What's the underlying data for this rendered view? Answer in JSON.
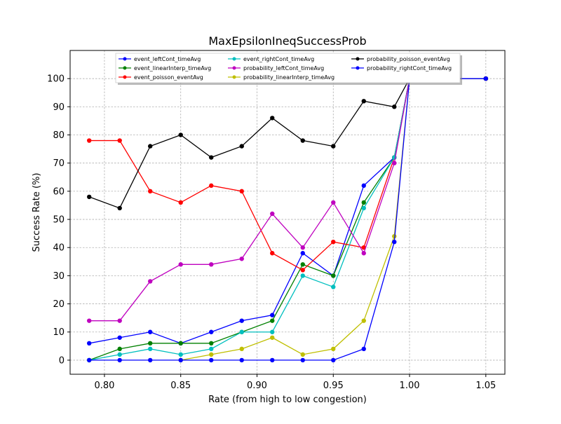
{
  "chart_data": {
    "type": "line",
    "title": "MaxEpsilonIneqSuccessProb",
    "xlabel": "Rate (from high to low congestion)",
    "ylabel": "Success Rate (%)",
    "xlim": [
      0.7775,
      1.0625
    ],
    "ylim": [
      -5,
      110
    ],
    "xticks": [
      0.8,
      0.85,
      0.9,
      0.95,
      1.0,
      1.05
    ],
    "xtick_labels": [
      "0.80",
      "0.85",
      "0.90",
      "0.95",
      "1.00",
      "1.05"
    ],
    "yticks": [
      0,
      10,
      20,
      30,
      40,
      50,
      60,
      70,
      80,
      90,
      100
    ],
    "ytick_labels": [
      "0",
      "10",
      "20",
      "30",
      "40",
      "50",
      "60",
      "70",
      "80",
      "90",
      "100"
    ],
    "grid": true,
    "legend_position": "top",
    "series": [
      {
        "name": "event_leftCont_timeAvg",
        "color": "#0000ff",
        "x": [
          0.79,
          0.81,
          0.83,
          0.85,
          0.87,
          0.89,
          0.91,
          0.93,
          0.95,
          0.97,
          0.99,
          1.0,
          1.05
        ],
        "y": [
          6,
          8,
          10,
          6,
          10,
          14,
          16,
          38,
          30,
          62,
          72,
          100,
          100
        ]
      },
      {
        "name": "event_linearInterp_timeAvg",
        "color": "#008000",
        "x": [
          0.79,
          0.81,
          0.83,
          0.85,
          0.87,
          0.89,
          0.91,
          0.93,
          0.95,
          0.97,
          0.99,
          1.0,
          1.05
        ],
        "y": [
          0,
          4,
          6,
          6,
          6,
          10,
          14,
          34,
          30,
          56,
          72,
          100,
          100
        ]
      },
      {
        "name": "event_poisson_eventAvg",
        "color": "#ff0000",
        "x": [
          0.79,
          0.81,
          0.83,
          0.85,
          0.87,
          0.89,
          0.91,
          0.93,
          0.95,
          0.97,
          0.99,
          1.0,
          1.05
        ],
        "y": [
          78,
          78,
          60,
          56,
          62,
          60,
          38,
          32,
          42,
          40,
          72,
          100,
          100
        ]
      },
      {
        "name": "event_rightCont_timeAvg",
        "color": "#00bfbf",
        "x": [
          0.79,
          0.81,
          0.83,
          0.85,
          0.87,
          0.89,
          0.91,
          0.93,
          0.95,
          0.97,
          0.99,
          1.0,
          1.05
        ],
        "y": [
          0,
          2,
          4,
          2,
          4,
          10,
          10,
          30,
          26,
          54,
          72,
          100,
          100
        ]
      },
      {
        "name": "probability_leftCont_timeAvg",
        "color": "#bf00bf",
        "x": [
          0.79,
          0.81,
          0.83,
          0.85,
          0.87,
          0.89,
          0.91,
          0.93,
          0.95,
          0.97,
          0.99,
          1.0,
          1.05
        ],
        "y": [
          14,
          14,
          28,
          34,
          34,
          36,
          52,
          40,
          56,
          38,
          70,
          100,
          100
        ]
      },
      {
        "name": "probability_linearInterp_timeAvg",
        "color": "#bfbf00",
        "x": [
          0.85,
          0.87,
          0.89,
          0.91,
          0.93,
          0.95,
          0.97,
          0.99,
          1.0,
          1.05
        ],
        "y": [
          0,
          2,
          4,
          8,
          2,
          4,
          14,
          44,
          100,
          100
        ]
      },
      {
        "name": "probability_poisson_eventAvg",
        "color": "#000000",
        "x": [
          0.79,
          0.81,
          0.83,
          0.85,
          0.87,
          0.89,
          0.91,
          0.93,
          0.95,
          0.97,
          0.99,
          1.0,
          1.05
        ],
        "y": [
          58,
          54,
          76,
          80,
          72,
          76,
          86,
          78,
          76,
          92,
          90,
          100,
          100
        ]
      },
      {
        "name": "probability_rightCont_timeAvg",
        "color": "#0000ff",
        "x": [
          0.79,
          0.81,
          0.83,
          0.85,
          0.87,
          0.89,
          0.91,
          0.93,
          0.95,
          0.97,
          0.99,
          1.0,
          1.05
        ],
        "y": [
          0,
          0,
          0,
          0,
          0,
          0,
          0,
          0,
          0,
          4,
          42,
          100,
          100
        ]
      }
    ]
  }
}
